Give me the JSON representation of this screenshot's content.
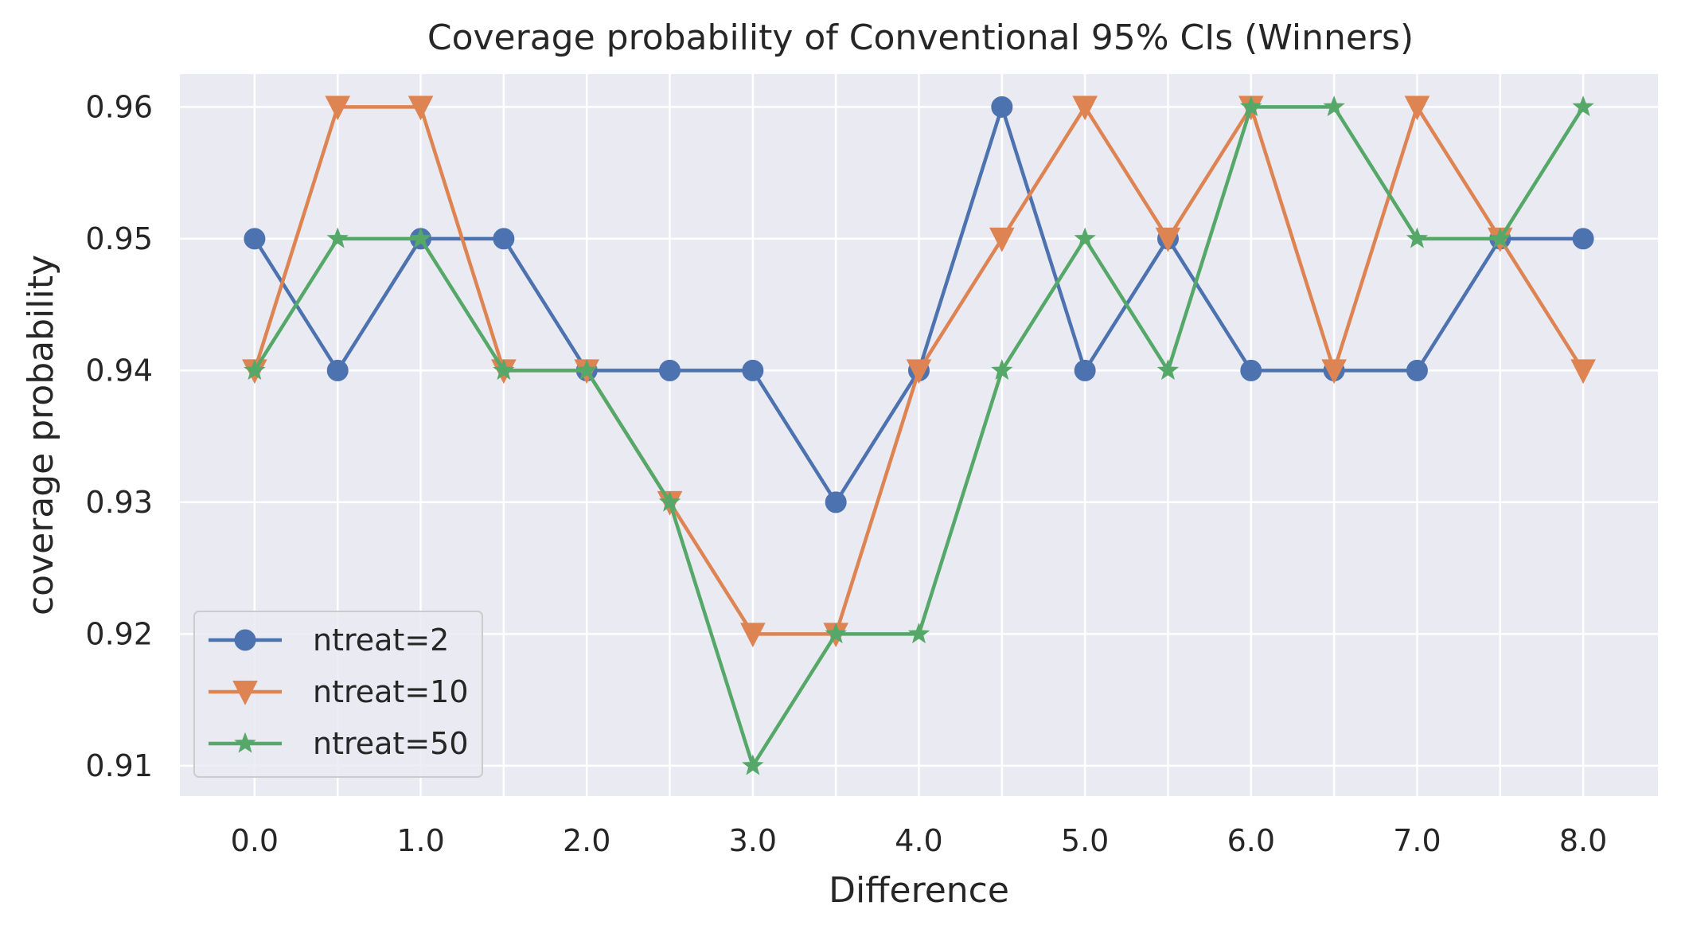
{
  "chart_data": {
    "type": "line",
    "title": "Coverage probability of Conventional 95% CIs (Winners)",
    "xlabel": "Difference",
    "ylabel": "coverage probability",
    "x": [
      0.0,
      0.5,
      1.0,
      1.5,
      2.0,
      2.5,
      3.0,
      3.5,
      4.0,
      4.5,
      5.0,
      5.5,
      6.0,
      6.5,
      7.0,
      7.5,
      8.0
    ],
    "xticks": [
      0.0,
      1.0,
      2.0,
      3.0,
      4.0,
      5.0,
      6.0,
      7.0,
      8.0
    ],
    "xtick_labels": [
      "0.0",
      "1.0",
      "2.0",
      "3.0",
      "4.0",
      "5.0",
      "6.0",
      "7.0",
      "8.0"
    ],
    "yticks": [
      0.91,
      0.92,
      0.93,
      0.94,
      0.95,
      0.96
    ],
    "ytick_labels": [
      "0.91",
      "0.92",
      "0.93",
      "0.94",
      "0.95",
      "0.96"
    ],
    "xlim": [
      -0.45,
      8.45
    ],
    "ylim": [
      0.9077,
      0.9625
    ],
    "grid": true,
    "background": "#EAEAF2",
    "legend_position": "lower-left",
    "series": [
      {
        "name": "ntreat=2",
        "color": "#4C72B0",
        "marker": "circle",
        "values": [
          0.95,
          0.94,
          0.95,
          0.95,
          0.94,
          0.94,
          0.94,
          0.93,
          0.94,
          0.96,
          0.94,
          0.95,
          0.94,
          0.94,
          0.94,
          0.95,
          0.95
        ]
      },
      {
        "name": "ntreat=10",
        "color": "#DD8452",
        "marker": "triangle-down",
        "values": [
          0.94,
          0.96,
          0.96,
          0.94,
          0.94,
          0.93,
          0.92,
          0.92,
          0.94,
          0.95,
          0.96,
          0.95,
          0.96,
          0.94,
          0.96,
          0.95,
          0.94
        ]
      },
      {
        "name": "ntreat=50",
        "color": "#55A868",
        "marker": "star",
        "values": [
          0.94,
          0.95,
          0.95,
          0.94,
          0.94,
          0.93,
          0.91,
          0.92,
          0.92,
          0.94,
          0.95,
          0.94,
          0.96,
          0.96,
          0.95,
          0.95,
          0.96
        ]
      }
    ]
  }
}
